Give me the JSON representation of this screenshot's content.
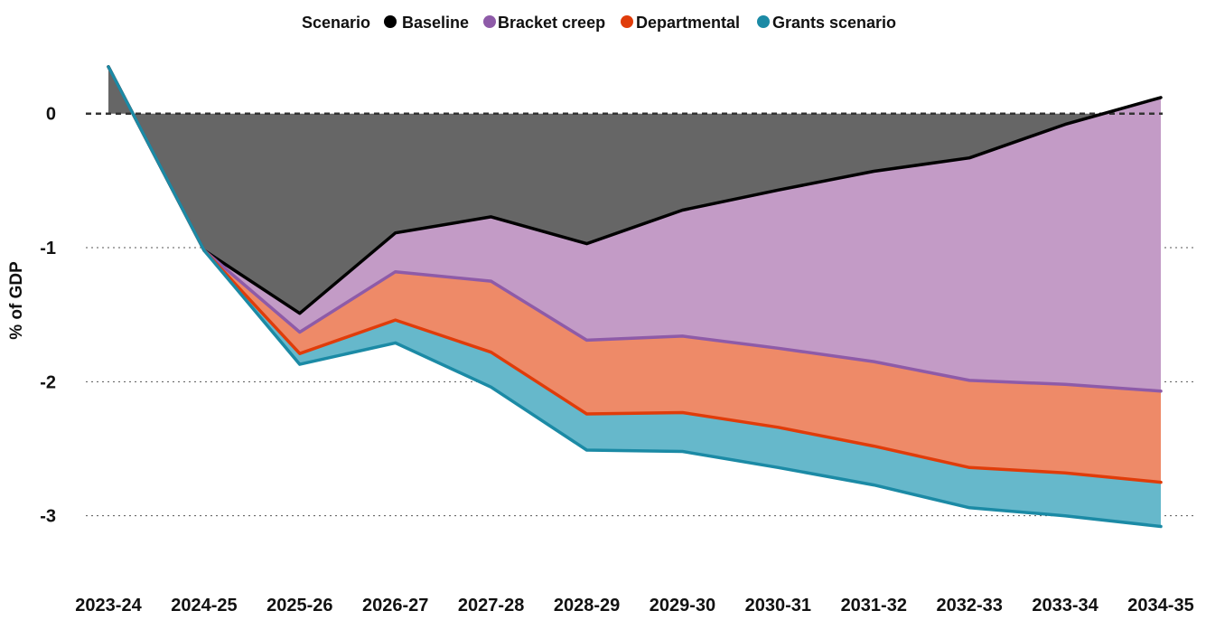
{
  "chart_data": {
    "type": "area",
    "legend": {
      "title": "Scenario",
      "placement": "top-center"
    },
    "ylabel": "% of GDP",
    "xlabel": "",
    "ylim": [
      -3.4,
      0.45
    ],
    "yticks": [
      0,
      -1,
      -2,
      -3
    ],
    "ytick_labels": [
      "0",
      "-1",
      "-2",
      "-3"
    ],
    "grid": "horizontal dotted",
    "zero_line": "dashed",
    "categories": [
      "2023-24",
      "2024-25",
      "2025-26",
      "2026-27",
      "2027-28",
      "2028-29",
      "2029-30",
      "2030-31",
      "2031-32",
      "2032-33",
      "2033-34",
      "2034-35"
    ],
    "series": [
      {
        "name": "Baseline",
        "color": "#000000",
        "fill": "#666666",
        "values": [
          0.35,
          -1.02,
          -1.49,
          -0.89,
          -0.77,
          -0.97,
          -0.72,
          -0.57,
          -0.43,
          -0.33,
          -0.08,
          0.12
        ]
      },
      {
        "name": "Bracket creep",
        "color": "#8e5ba8",
        "fill": "#c39bc6",
        "values": [
          0.35,
          -1.02,
          -1.63,
          -1.18,
          -1.25,
          -1.69,
          -1.66,
          -1.75,
          -1.85,
          -1.99,
          -2.02,
          -2.07
        ]
      },
      {
        "name": "Departmental",
        "color": "#e03c0a",
        "fill": "#ee8a68",
        "values": [
          0.35,
          -1.02,
          -1.79,
          -1.54,
          -1.78,
          -2.24,
          -2.23,
          -2.34,
          -2.48,
          -2.64,
          -2.68,
          -2.75
        ]
      },
      {
        "name": "Grants scenario",
        "color": "#1b8aa5",
        "fill": "#66b8cb",
        "values": [
          0.35,
          -1.02,
          -1.87,
          -1.71,
          -2.04,
          -2.51,
          -2.52,
          -2.64,
          -2.77,
          -2.94,
          -3.0,
          -3.08
        ]
      }
    ]
  }
}
